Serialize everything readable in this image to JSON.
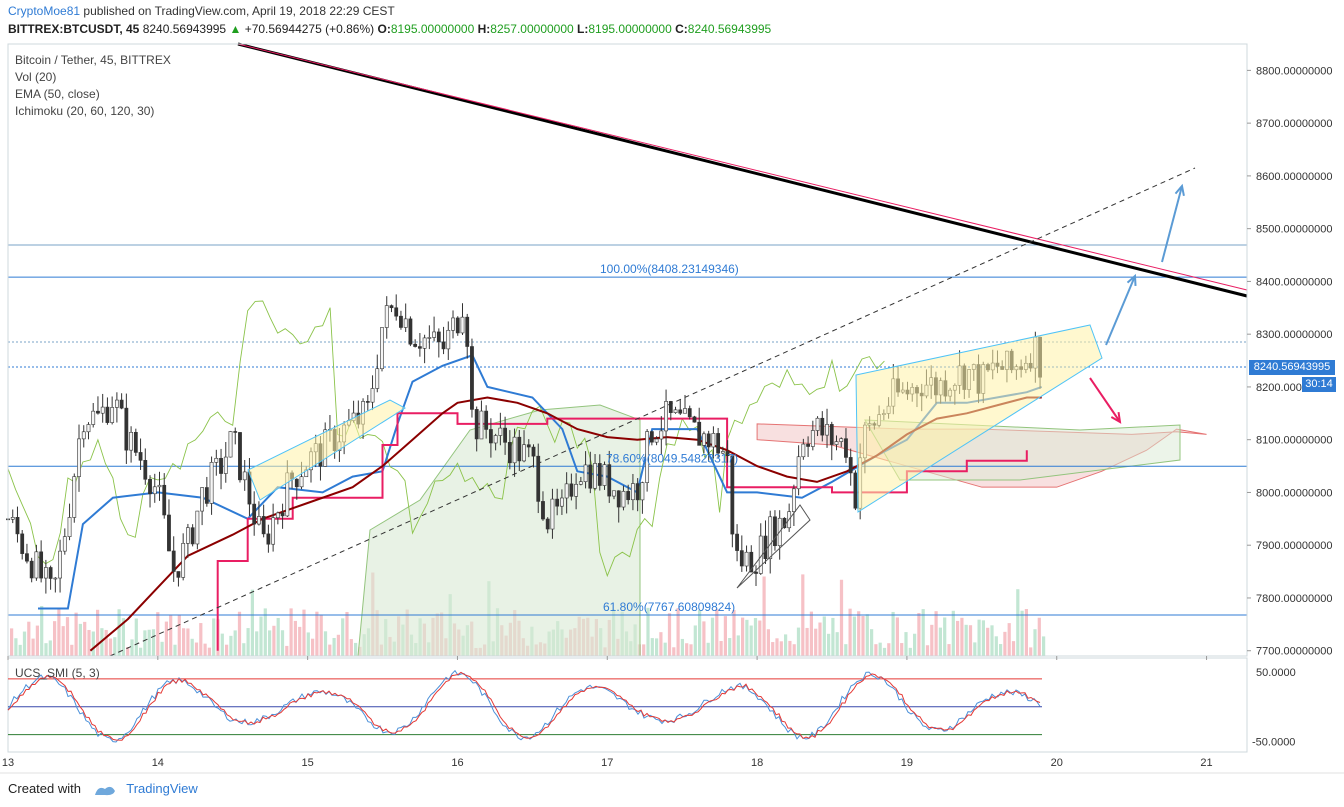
{
  "header": {
    "author": "CryptoMoe81",
    "published": "published on TradingView.com, April 19, 2018 22:29 CEST",
    "symbol": "BITTREX:BTCUSDT, 45",
    "last": "8240.56943995",
    "change": "+70.56944275 (+0.86%)",
    "o_label": "O:",
    "o_value": "8195.00000000",
    "h_label": "H:",
    "h_value": "8257.00000000",
    "l_label": "L:",
    "l_value": "8195.00000000",
    "c_label": "C:",
    "c_value": "8240.56943995"
  },
  "legend": {
    "title": "Bitcoin / Tether, 45, BITTREX",
    "vol": "Vol (20)",
    "ema": "EMA (50, close)",
    "ichimoku": "Ichimoku (20, 60, 120, 30)"
  },
  "smi": {
    "label": "UCS_SMI (5, 3)",
    "upper_tick": "50.0000",
    "lower_tick": "-50.0000"
  },
  "price_tag": "8240.56943995",
  "time_tag": "30:14",
  "footer": {
    "created": "Created with",
    "brand": "TradingView"
  },
  "colors": {
    "up": "#53b987",
    "down": "#eb4d5c",
    "kijun": "#e91e63",
    "tenkan": "#2f7bd4",
    "ema": "#8b0000",
    "chikou": "#6aa84f",
    "trend": "#000000",
    "fib": "#2f7bd4",
    "smi_fast": "#4a90d9",
    "smi_slow": "#e53935"
  },
  "chart_data": {
    "type": "line",
    "title": "Bitcoin / Tether, 45, BITTREX",
    "yticks": [
      "8800.00000000",
      "8700.00000000",
      "8600.00000000",
      "8500.00000000",
      "8400.00000000",
      "8300.00000000",
      "8200.00000000",
      "8100.00000000",
      "8000.00000000",
      "7900.00000000",
      "7800.00000000",
      "7700.00000000"
    ],
    "ylim": [
      7690,
      8850
    ],
    "xticks": [
      {
        "label": "13",
        "day": 13
      },
      {
        "label": "14",
        "day": 14
      },
      {
        "label": "15",
        "day": 15
      },
      {
        "label": "16",
        "day": 16
      },
      {
        "label": "17",
        "day": 17
      },
      {
        "label": "18",
        "day": 18
      },
      {
        "label": "19",
        "day": 19
      },
      {
        "label": "20",
        "day": 20
      },
      {
        "label": "21",
        "day": 21
      }
    ],
    "xlim": [
      13.0,
      21.27
    ],
    "close_series": [
      [
        13.0,
        7950
      ],
      [
        13.1,
        7900
      ],
      [
        13.2,
        7850
      ],
      [
        13.3,
        7800
      ],
      [
        13.4,
        7960
      ],
      [
        13.5,
        8150
      ],
      [
        13.6,
        8140
      ],
      [
        13.7,
        8180
      ],
      [
        13.8,
        8100
      ],
      [
        13.9,
        8060
      ],
      [
        14.0,
        8000
      ],
      [
        14.1,
        7850
      ],
      [
        14.2,
        7900
      ],
      [
        14.3,
        8000
      ],
      [
        14.4,
        8040
      ],
      [
        14.5,
        8100
      ],
      [
        14.6,
        8000
      ],
      [
        14.7,
        7900
      ],
      [
        14.8,
        7970
      ],
      [
        14.9,
        8030
      ],
      [
        15.0,
        8060
      ],
      [
        15.1,
        8080
      ],
      [
        15.2,
        8110
      ],
      [
        15.3,
        8130
      ],
      [
        15.4,
        8150
      ],
      [
        15.5,
        8320
      ],
      [
        15.6,
        8360
      ],
      [
        15.7,
        8300
      ],
      [
        15.8,
        8290
      ],
      [
        15.9,
        8270
      ],
      [
        16.0,
        8330
      ],
      [
        16.05,
        8380
      ],
      [
        16.1,
        8130
      ],
      [
        16.2,
        8120
      ],
      [
        16.3,
        8100
      ],
      [
        16.4,
        8080
      ],
      [
        16.5,
        8060
      ],
      [
        16.6,
        7950
      ],
      [
        16.7,
        7960
      ],
      [
        16.8,
        8050
      ],
      [
        16.9,
        8040
      ],
      [
        17.0,
        8020
      ],
      [
        17.1,
        8000
      ],
      [
        17.2,
        8010
      ],
      [
        17.3,
        8120
      ],
      [
        17.4,
        8140
      ],
      [
        17.5,
        8130
      ],
      [
        17.6,
        8110
      ],
      [
        17.7,
        8100
      ],
      [
        17.8,
        8070
      ],
      [
        17.85,
        7880
      ],
      [
        17.9,
        7870
      ],
      [
        18.0,
        7880
      ],
      [
        18.1,
        7930
      ],
      [
        18.2,
        7950
      ],
      [
        18.3,
        8110
      ],
      [
        18.4,
        8120
      ],
      [
        18.5,
        8100
      ],
      [
        18.6,
        8090
      ],
      [
        18.65,
        7980
      ],
      [
        18.7,
        8100
      ],
      [
        18.8,
        8140
      ],
      [
        18.9,
        8180
      ],
      [
        19.0,
        8190
      ],
      [
        19.1,
        8210
      ],
      [
        19.2,
        8200
      ],
      [
        19.3,
        8220
      ],
      [
        19.4,
        8230
      ],
      [
        19.5,
        8210
      ],
      [
        19.6,
        8240
      ],
      [
        19.7,
        8230
      ],
      [
        19.8,
        8260
      ],
      [
        19.85,
        8280
      ],
      [
        19.9,
        8240
      ]
    ],
    "ema50": [
      [
        13.55,
        7700
      ],
      [
        13.8,
        7760
      ],
      [
        14.0,
        7820
      ],
      [
        14.2,
        7880
      ],
      [
        14.5,
        7920
      ],
      [
        14.7,
        7950
      ],
      [
        15.0,
        7980
      ],
      [
        15.3,
        8010
      ],
      [
        15.5,
        8050
      ],
      [
        15.7,
        8100
      ],
      [
        15.9,
        8150
      ],
      [
        16.0,
        8170
      ],
      [
        16.2,
        8180
      ],
      [
        16.4,
        8170
      ],
      [
        16.6,
        8150
      ],
      [
        16.8,
        8120
      ],
      [
        17.0,
        8105
      ],
      [
        17.2,
        8100
      ],
      [
        17.4,
        8105
      ],
      [
        17.6,
        8100
      ],
      [
        17.8,
        8080
      ],
      [
        18.0,
        8050
      ],
      [
        18.2,
        8030
      ],
      [
        18.4,
        8020
      ],
      [
        18.6,
        8040
      ],
      [
        18.8,
        8070
      ],
      [
        19.0,
        8110
      ],
      [
        19.2,
        8140
      ],
      [
        19.4,
        8150
      ],
      [
        19.6,
        8165
      ],
      [
        19.8,
        8180
      ],
      [
        19.9,
        8180
      ]
    ],
    "kijun": [
      [
        14.4,
        7700
      ],
      [
        14.4,
        7870
      ],
      [
        14.6,
        7870
      ],
      [
        14.6,
        7950
      ],
      [
        14.9,
        7950
      ],
      [
        14.9,
        7990
      ],
      [
        15.5,
        7990
      ],
      [
        15.5,
        8090
      ],
      [
        15.6,
        8090
      ],
      [
        15.6,
        8150
      ],
      [
        16.0,
        8150
      ],
      [
        16.0,
        8130
      ],
      [
        16.6,
        8130
      ],
      [
        16.6,
        8140
      ],
      [
        17.8,
        8140
      ],
      [
        17.8,
        8010
      ],
      [
        18.5,
        8010
      ],
      [
        18.5,
        8000
      ],
      [
        19.0,
        8000
      ],
      [
        19.0,
        8040
      ],
      [
        19.4,
        8040
      ],
      [
        19.4,
        8060
      ],
      [
        19.8,
        8060
      ],
      [
        19.8,
        8080
      ]
    ],
    "tenkan": [
      [
        13.2,
        7780
      ],
      [
        13.4,
        7780
      ],
      [
        13.5,
        7940
      ],
      [
        13.7,
        7990
      ],
      [
        14.0,
        8000
      ],
      [
        14.3,
        7990
      ],
      [
        14.6,
        7950
      ],
      [
        14.8,
        8010
      ],
      [
        15.1,
        8000
      ],
      [
        15.3,
        8030
      ],
      [
        15.5,
        8040
      ],
      [
        15.6,
        8130
      ],
      [
        15.7,
        8210
      ],
      [
        15.9,
        8240
      ],
      [
        16.1,
        8260
      ],
      [
        16.2,
        8200
      ],
      [
        16.5,
        8180
      ],
      [
        16.7,
        8120
      ],
      [
        16.8,
        8040
      ],
      [
        17.0,
        8030
      ],
      [
        17.2,
        8000
      ],
      [
        17.3,
        8120
      ],
      [
        17.6,
        8120
      ],
      [
        17.8,
        8000
      ],
      [
        18.0,
        8000
      ],
      [
        18.3,
        7990
      ],
      [
        18.5,
        8020
      ],
      [
        18.8,
        8070
      ],
      [
        19.0,
        8100
      ],
      [
        19.2,
        8170
      ],
      [
        19.4,
        8170
      ],
      [
        19.6,
        8180
      ],
      [
        19.8,
        8190
      ],
      [
        19.9,
        8200
      ]
    ],
    "cloud_upper": [
      [
        18.0,
        8130
      ],
      [
        18.5,
        8125
      ],
      [
        19.0,
        8120
      ],
      [
        19.5,
        8120
      ],
      [
        20.0,
        8115
      ],
      [
        20.5,
        8110
      ],
      [
        20.8,
        8115
      ],
      [
        21.0,
        8110
      ]
    ],
    "cloud_lower": [
      [
        18.0,
        8100
      ],
      [
        18.5,
        8090
      ],
      [
        19.0,
        8050
      ],
      [
        19.5,
        8010
      ],
      [
        20.0,
        8010
      ],
      [
        20.3,
        8040
      ],
      [
        20.6,
        8080
      ],
      [
        20.8,
        8120
      ],
      [
        21.0,
        8110
      ]
    ],
    "fib_levels": [
      {
        "label": "100.00%(8408.23149346)",
        "value": 8408.23
      },
      {
        "label": "78.60%(8049.54823317)",
        "value": 8049.55
      },
      {
        "label": "61.80%(7767.60809824)",
        "value": 7767.61
      }
    ],
    "smi_ylim": [
      -65,
      70
    ],
    "smi_levels": [
      40,
      0,
      -40
    ]
  }
}
